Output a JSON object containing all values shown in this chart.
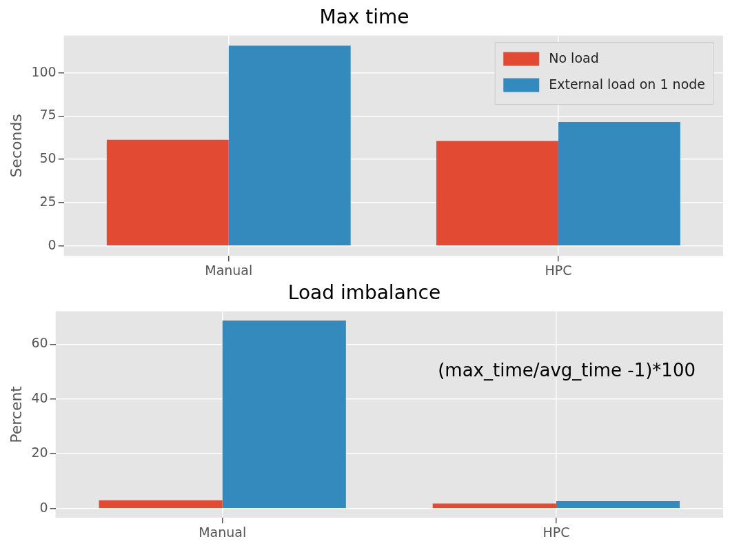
{
  "chart_data": [
    {
      "type": "bar",
      "title": "Max time",
      "ylabel": "Seconds",
      "categories": [
        "Manual",
        "HPC"
      ],
      "series": [
        {
          "name": "No load",
          "color": "#e24a33",
          "values": [
            61.3,
            60.6
          ]
        },
        {
          "name": "External load on 1 node",
          "color": "#348abd",
          "values": [
            115.7,
            71.6
          ]
        }
      ],
      "ylim": [
        -5.8,
        121.5
      ],
      "yticks": [
        0,
        25,
        50,
        75,
        100
      ],
      "grid": true,
      "legend": "top right"
    },
    {
      "type": "bar",
      "title": "Load imbalance",
      "ylabel": "Percent",
      "categories": [
        "Manual",
        "HPC"
      ],
      "series": [
        {
          "color": "#e24a33",
          "values": [
            3.0,
            1.8
          ]
        },
        {
          "color": "#348abd",
          "values": [
            68.6,
            2.7
          ]
        }
      ],
      "ylim": [
        -3.4,
        72
      ],
      "yticks": [
        0,
        20,
        40,
        60
      ],
      "grid": true,
      "annotations": [
        "(max_time/avg_time -1)*100"
      ]
    }
  ]
}
